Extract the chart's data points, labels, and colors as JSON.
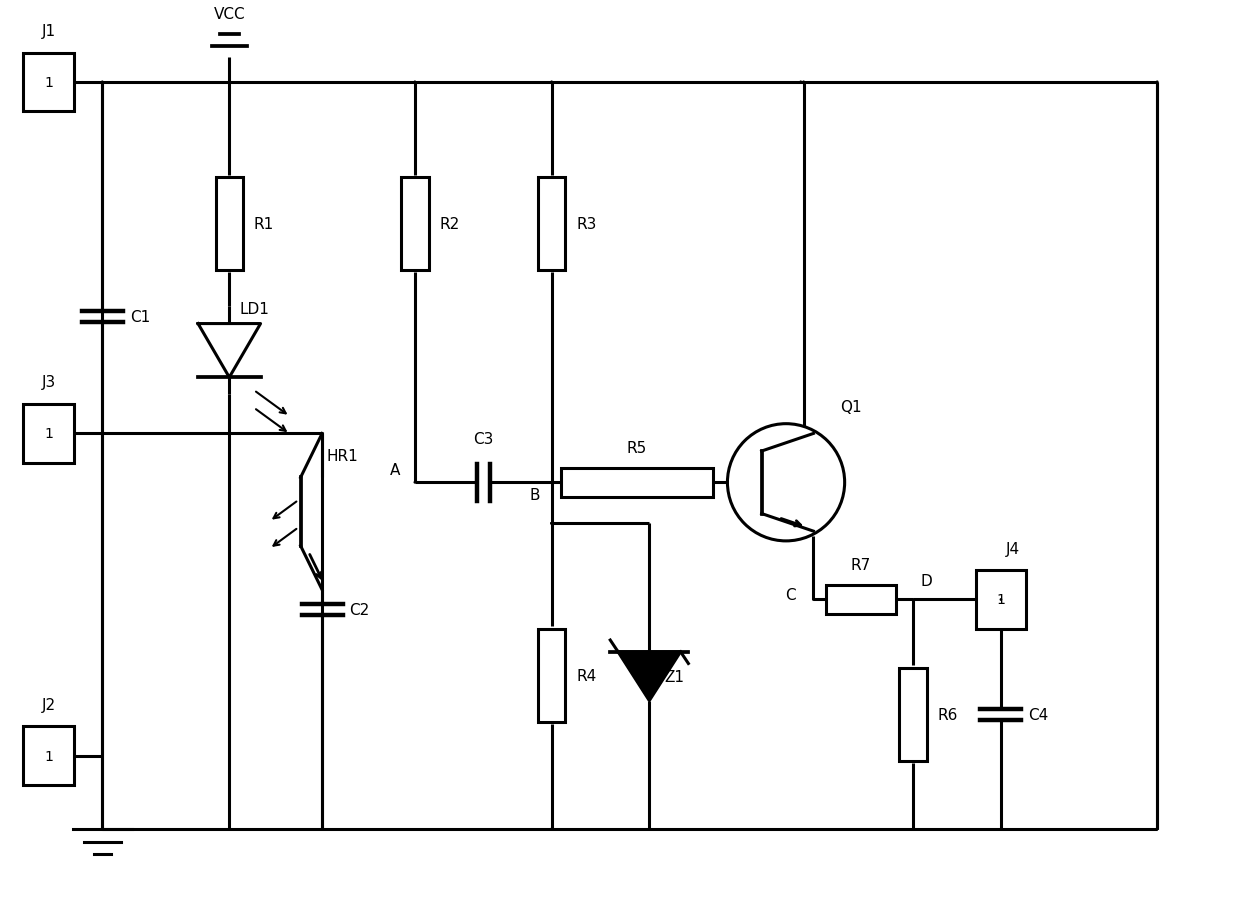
{
  "bg_color": "#ffffff",
  "line_color": "#000000",
  "lw": 2.2,
  "dot_r": 0.007,
  "figsize": [
    12.4,
    9.2
  ],
  "dpi": 100,
  "xlim": [
    0,
    12.4
  ],
  "ylim": [
    0,
    9.2
  ]
}
